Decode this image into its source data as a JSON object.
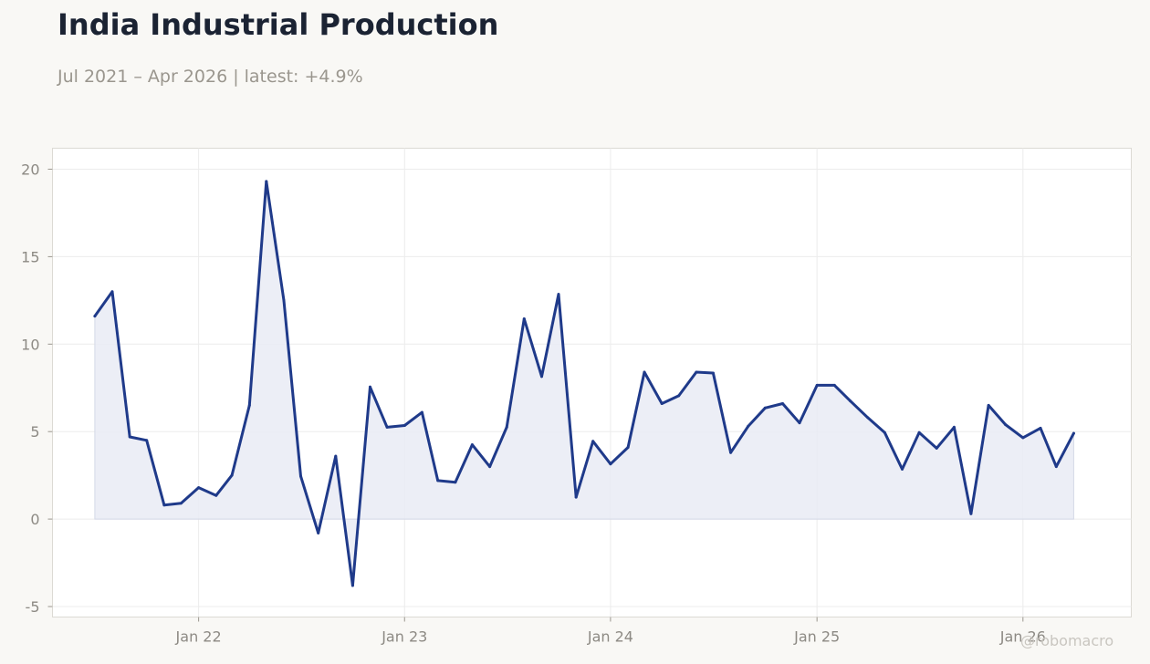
{
  "chart_data": {
    "type": "area",
    "title": "India Industrial Production",
    "subtitle": "Jul 2021 – Apr 2026 | latest: +4.9%",
    "xlabel": "",
    "ylabel": "",
    "x_start": "2021-07",
    "x_end": "2026-04",
    "x_ticks": [
      {
        "date": "2022-01",
        "label": "Jan 22"
      },
      {
        "date": "2023-01",
        "label": "Jan 23"
      },
      {
        "date": "2024-01",
        "label": "Jan 24"
      },
      {
        "date": "2025-01",
        "label": "Jan 25"
      },
      {
        "date": "2026-01",
        "label": "Jan 26"
      }
    ],
    "y_ticks": [
      -5,
      0,
      5,
      10,
      15,
      20
    ],
    "ylim": [
      -5.6,
      21.2
    ],
    "xlim": [
      "2021-04-17",
      "2026-07-12"
    ],
    "grid": true,
    "legend": "none",
    "colors": {
      "line": "#1f3a8a",
      "fill": "#e9ebf4",
      "grid": "#ececec",
      "plot_bg": "#ffffff",
      "page_bg": "#f9f8f5",
      "frame": "#dcdad4"
    },
    "series": [
      {
        "x": [
          "2021-07",
          "2021-08",
          "2021-09",
          "2021-10",
          "2021-11",
          "2021-12",
          "2022-01",
          "2022-02",
          "2022-03",
          "2022-04",
          "2022-05",
          "2022-06",
          "2022-07",
          "2022-08",
          "2022-09",
          "2022-10",
          "2022-11",
          "2022-12",
          "2023-01",
          "2023-02",
          "2023-03",
          "2023-04",
          "2023-05",
          "2023-06",
          "2023-07",
          "2023-08",
          "2023-09",
          "2023-10",
          "2023-11",
          "2023-12",
          "2024-01",
          "2024-02",
          "2024-03",
          "2024-04",
          "2024-05",
          "2024-06",
          "2024-07",
          "2024-08",
          "2024-09",
          "2024-10",
          "2024-11",
          "2024-12",
          "2025-01",
          "2025-02",
          "2025-03",
          "2025-04",
          "2025-05",
          "2025-06",
          "2025-07",
          "2025-08",
          "2025-09",
          "2025-10",
          "2025-11",
          "2025-12",
          "2026-01",
          "2026-02",
          "2026-03",
          "2026-04"
        ],
        "values": [
          11.6,
          13.0,
          4.7,
          4.5,
          0.8,
          0.9,
          1.8,
          1.35,
          2.5,
          6.5,
          19.3,
          12.5,
          2.45,
          -0.8,
          3.6,
          -3.8,
          7.55,
          5.25,
          5.35,
          6.1,
          2.2,
          2.1,
          4.25,
          3.0,
          5.25,
          11.45,
          8.15,
          12.85,
          1.25,
          4.45,
          3.15,
          4.1,
          8.4,
          6.6,
          7.05,
          8.4,
          8.35,
          3.8,
          5.3,
          6.35,
          6.6,
          5.5,
          7.65,
          7.65,
          6.75,
          5.8,
          4.95,
          2.85,
          4.95,
          4.05,
          5.25,
          0.3,
          6.5,
          5.4,
          4.65,
          5.2,
          3.0,
          4.9
        ]
      }
    ]
  },
  "watermark": "@robomacro"
}
